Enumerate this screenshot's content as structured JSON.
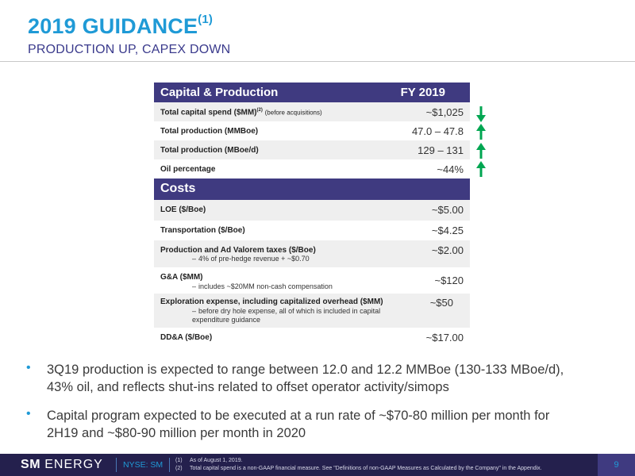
{
  "header": {
    "title": "2019 GUIDANCE",
    "title_sup": "(1)",
    "subtitle": "PRODUCTION UP, CAPEX DOWN"
  },
  "table": {
    "section1": {
      "label": "Capital & Production",
      "col": "FY 2019"
    },
    "cap_rows": [
      {
        "label": "Total capital spend ($MM)",
        "sup": "(2)",
        "small": "(before acquisitions)",
        "value": "~$1,025",
        "trend": "down"
      },
      {
        "label": "Total production (MMBoe)",
        "value": "47.0 – 47.8",
        "trend": "up"
      },
      {
        "label": "Total production (MBoe/d)",
        "value": "129 – 131",
        "trend": "up"
      },
      {
        "label": "Oil percentage",
        "value": "~44%",
        "trend": "up"
      }
    ],
    "section2": {
      "label": "Costs"
    },
    "cost_rows": [
      {
        "label": "LOE ($/Boe)",
        "value": "~$5.00"
      },
      {
        "label": "Transportation ($/Boe)",
        "value": "~$4.25"
      },
      {
        "label": "Production and Ad Valorem taxes ($/Boe)",
        "value": "~$2.00",
        "note1": "4% of pre-hedge revenue + ~$0.70"
      },
      {
        "label": "G&A ($MM)",
        "value": "~$120",
        "note1": "includes ~$20MM non-cash compensation"
      },
      {
        "label": "Exploration expense, including capitalized overhead ($MM)",
        "value": "~$50",
        "note1": "before dry hole expense, all of which is included in capital",
        "note2": "expenditure guidance"
      },
      {
        "label": "DD&A ($/Boe)",
        "value": "~$17.00"
      }
    ],
    "note_dash": "–"
  },
  "bullets": [
    {
      "line1": "3Q19 production is expected to range between 12.0 and 12.2 MMBoe (130-133 MBoe/d),",
      "line2": "43% oil, and reflects shut-ins related to offset operator activity/simops"
    },
    {
      "line1": "Capital program expected to be executed at a run rate of ~$70-80 million per month for",
      "line2": "2H19 and ~$80-90 million per month in 2020"
    }
  ],
  "bullet_glyph": "•",
  "footer": {
    "logo_sm": "SM",
    "logo_energy": "ENERGY",
    "ticker": "NYSE: SM",
    "footnotes": [
      {
        "key": "(1)",
        "text": "As of August 1, 2019."
      },
      {
        "key": "(2)",
        "text": "Total capital spend is a non-GAAP financial measure. See \"Definitions of non-GAAP Measures as Calculated by the Company\" in the Appendix."
      }
    ],
    "page": "9"
  },
  "colors": {
    "accent": "#1f9ad6",
    "header_bg": "#3f3a80",
    "arrow": "#00a651",
    "footer_bg": "#24204d"
  }
}
